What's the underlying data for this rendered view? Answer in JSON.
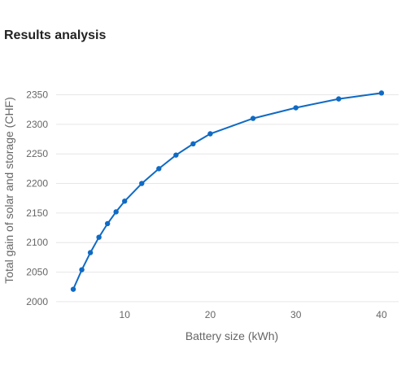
{
  "page": {
    "title": "Results analysis"
  },
  "chart_data": {
    "type": "line",
    "title": "",
    "xlabel": "Battery size (kWh)",
    "ylabel": "Total gain of solar and storage (CHF)",
    "xlim": [
      2,
      42
    ],
    "ylim": [
      1993,
      2370
    ],
    "xticks": [
      10,
      20,
      30,
      40
    ],
    "yticks": [
      2000,
      2050,
      2100,
      2150,
      2200,
      2250,
      2300,
      2350
    ],
    "grid": true,
    "color": "#0f6ac4",
    "series": [
      {
        "x": [
          4,
          5,
          6,
          7,
          8,
          9,
          10,
          12,
          14,
          16,
          18,
          20,
          25,
          30,
          35,
          40
        ],
        "y": [
          2021,
          2054,
          2083,
          2109,
          2132,
          2152,
          2170,
          2200,
          2225,
          2248,
          2267,
          2284,
          2310,
          2328,
          2343,
          2353
        ]
      }
    ]
  }
}
